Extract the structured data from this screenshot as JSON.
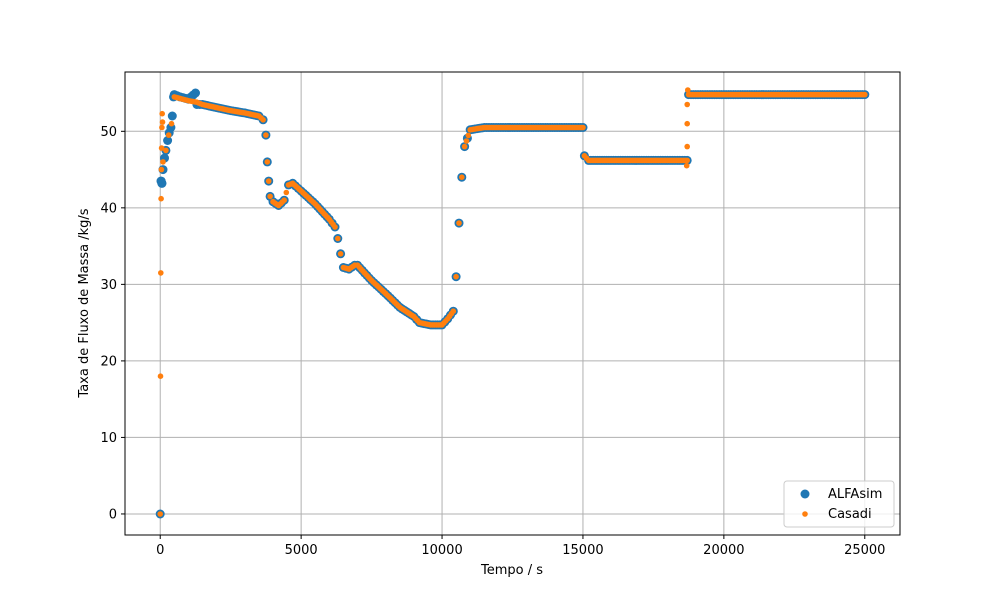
{
  "chart_data": {
    "type": "scatter",
    "xlabel": "Tempo / s",
    "ylabel": "Taxa de Fluxo de Massa /kg/s",
    "xlim": [
      -1250,
      26250
    ],
    "ylim": [
      -2.75,
      57.75
    ],
    "xticks": [
      0,
      5000,
      10000,
      15000,
      20000,
      25000
    ],
    "yticks": [
      0,
      10,
      20,
      30,
      40,
      50
    ],
    "grid": true,
    "legend_position": "lower-right",
    "series": [
      {
        "name": "ALFAsim",
        "color": "#1f77b4",
        "marker": "large-circle",
        "points": [
          [
            0,
            0
          ],
          [
            30,
            43.5
          ],
          [
            60,
            43.2
          ],
          [
            100,
            45
          ],
          [
            150,
            46.5
          ],
          [
            200,
            47.5
          ],
          [
            260,
            48.8
          ],
          [
            320,
            49.8
          ],
          [
            380,
            50.5
          ],
          [
            430,
            52
          ],
          [
            470,
            54.5
          ],
          [
            500,
            54.8
          ],
          [
            700,
            54.5
          ],
          [
            1000,
            54.2
          ],
          [
            1250,
            55.0
          ],
          [
            1300,
            53.5
          ],
          [
            1500,
            53.5
          ],
          [
            2000,
            53.1
          ],
          [
            2500,
            52.7
          ],
          [
            3000,
            52.4
          ],
          [
            3500,
            52.0
          ],
          [
            3650,
            51.5
          ],
          [
            3750,
            49.5
          ],
          [
            3800,
            46
          ],
          [
            3850,
            43.5
          ],
          [
            3900,
            41.5
          ],
          [
            4000,
            40.8
          ],
          [
            4200,
            40.3
          ],
          [
            4400,
            41
          ],
          [
            4550,
            43
          ],
          [
            4700,
            43.2
          ],
          [
            5000,
            42.2
          ],
          [
            5500,
            40.5
          ],
          [
            6000,
            38.5
          ],
          [
            6200,
            37.5
          ],
          [
            6300,
            36
          ],
          [
            6400,
            34
          ],
          [
            6500,
            32.2
          ],
          [
            6700,
            32.0
          ],
          [
            6900,
            32.5
          ],
          [
            7000,
            32.5
          ],
          [
            7500,
            30.5
          ],
          [
            8000,
            28.8
          ],
          [
            8500,
            27.0
          ],
          [
            9000,
            25.8
          ],
          [
            9200,
            25.0
          ],
          [
            9600,
            24.7
          ],
          [
            10000,
            24.7
          ],
          [
            10200,
            25.5
          ],
          [
            10400,
            26.5
          ],
          [
            10500,
            31
          ],
          [
            10600,
            38
          ],
          [
            10700,
            44
          ],
          [
            10800,
            48
          ],
          [
            11000,
            50.2
          ],
          [
            11500,
            50.5
          ],
          [
            12000,
            50.5
          ],
          [
            13000,
            50.5
          ],
          [
            14000,
            50.5
          ],
          [
            15000,
            50.5
          ],
          [
            15050,
            46.8
          ],
          [
            15200,
            46.2
          ],
          [
            16000,
            46.2
          ],
          [
            17000,
            46.2
          ],
          [
            18000,
            46.2
          ],
          [
            18700,
            46.2
          ],
          [
            18750,
            54.8
          ],
          [
            19000,
            54.8
          ],
          [
            20000,
            54.8
          ],
          [
            21000,
            54.8
          ],
          [
            22000,
            54.8
          ],
          [
            23000,
            54.8
          ],
          [
            24000,
            54.8
          ],
          [
            25000,
            54.8
          ]
        ]
      },
      {
        "name": "Casadi",
        "color": "#ff7f0e",
        "marker": "small-circle",
        "points": [
          [
            0,
            0
          ],
          [
            10,
            18
          ],
          [
            20,
            31.5
          ],
          [
            30,
            41.2
          ],
          [
            40,
            45
          ],
          [
            50,
            47.8
          ],
          [
            60,
            50.5
          ],
          [
            70,
            52.3
          ],
          [
            80,
            51.2
          ],
          [
            100,
            46
          ],
          [
            200,
            47.5
          ],
          [
            300,
            49.5
          ],
          [
            400,
            51
          ],
          [
            500,
            54.5
          ],
          [
            700,
            54.3
          ],
          [
            1000,
            54.0
          ],
          [
            1300,
            53.8
          ],
          [
            1500,
            53.5
          ],
          [
            2000,
            53.1
          ],
          [
            2500,
            52.7
          ],
          [
            3000,
            52.4
          ],
          [
            3500,
            52.0
          ],
          [
            3650,
            51.5
          ],
          [
            3750,
            49.5
          ],
          [
            3800,
            46
          ],
          [
            3850,
            43.5
          ],
          [
            3900,
            41.5
          ],
          [
            4000,
            40.8
          ],
          [
            4200,
            40.3
          ],
          [
            4400,
            41
          ],
          [
            4550,
            43
          ],
          [
            4700,
            43.2
          ],
          [
            5000,
            42.2
          ],
          [
            5500,
            40.5
          ],
          [
            6000,
            38.5
          ],
          [
            6200,
            37.5
          ],
          [
            6300,
            36
          ],
          [
            6400,
            34
          ],
          [
            6500,
            32.2
          ],
          [
            6700,
            32.0
          ],
          [
            6900,
            32.5
          ],
          [
            7000,
            32.5
          ],
          [
            7500,
            30.5
          ],
          [
            8000,
            28.8
          ],
          [
            8500,
            27.0
          ],
          [
            9000,
            25.8
          ],
          [
            9200,
            25.0
          ],
          [
            9600,
            24.7
          ],
          [
            10000,
            24.7
          ],
          [
            10200,
            25.5
          ],
          [
            10400,
            26.5
          ],
          [
            10500,
            31
          ],
          [
            10600,
            38
          ],
          [
            10700,
            44
          ],
          [
            10800,
            48
          ],
          [
            11000,
            50.2
          ],
          [
            11500,
            50.5
          ],
          [
            12000,
            50.5
          ],
          [
            13000,
            50.5
          ],
          [
            14000,
            50.5
          ],
          [
            15000,
            50.5
          ],
          [
            15050,
            46.8
          ],
          [
            15200,
            46.2
          ],
          [
            16000,
            46.2
          ],
          [
            17000,
            46.2
          ],
          [
            18000,
            46.2
          ],
          [
            18700,
            46.2
          ],
          [
            18680,
            45.5
          ],
          [
            18700,
            48
          ],
          [
            18700,
            51
          ],
          [
            18700,
            53.5
          ],
          [
            18720,
            55.4
          ],
          [
            18750,
            54.8
          ],
          [
            19000,
            54.8
          ],
          [
            20000,
            54.8
          ],
          [
            21000,
            54.8
          ],
          [
            22000,
            54.8
          ],
          [
            23000,
            54.8
          ],
          [
            24000,
            54.8
          ],
          [
            25000,
            54.8
          ]
        ]
      }
    ]
  }
}
